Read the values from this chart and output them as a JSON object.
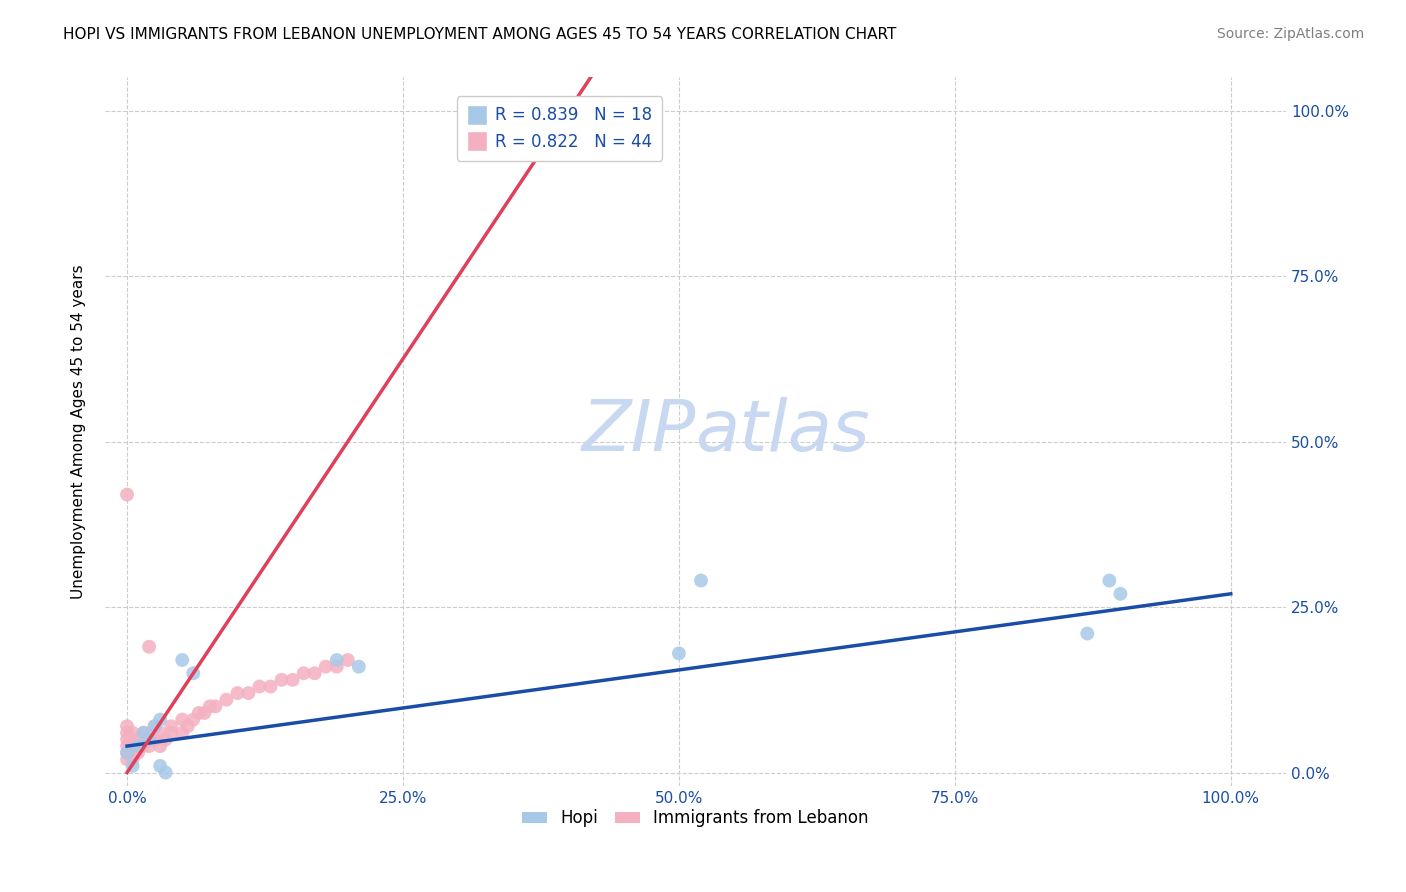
{
  "title": "HOPI VS IMMIGRANTS FROM LEBANON UNEMPLOYMENT AMONG AGES 45 TO 54 YEARS CORRELATION CHART",
  "source": "Source: ZipAtlas.com",
  "ylabel": "Unemployment Among Ages 45 to 54 years",
  "xlim": [
    -0.02,
    1.05
  ],
  "ylim": [
    -0.02,
    1.05
  ],
  "xticks": [
    0.0,
    0.25,
    0.5,
    0.75,
    1.0
  ],
  "yticks": [
    0.0,
    0.25,
    0.5,
    0.75,
    1.0
  ],
  "xticklabels": [
    "0.0%",
    "25.0%",
    "50.0%",
    "75.0%",
    "100.0%"
  ],
  "right_yticklabels": [
    "0.0%",
    "25.0%",
    "50.0%",
    "75.0%",
    "100.0%"
  ],
  "watermark_zip": "ZIP",
  "watermark_atlas": "atlas",
  "hopi_color": "#a8c8e8",
  "lebanon_color": "#f4b0c0",
  "hopi_line_color": "#1a4da6",
  "lebanon_line_color": "#e0405a",
  "hopi_R": "0.839",
  "hopi_N": "18",
  "lebanon_R": "0.822",
  "lebanon_N": "44",
  "legend_label_hopi": "Hopi",
  "legend_label_lebanon": "Immigrants from Lebanon",
  "hopi_scatter_x": [
    0.0,
    0.005,
    0.01,
    0.015,
    0.02,
    0.025,
    0.03,
    0.035,
    0.05,
    0.06,
    0.19,
    0.21,
    0.5,
    0.52,
    0.87,
    0.89,
    0.9,
    0.03
  ],
  "hopi_scatter_y": [
    0.03,
    0.01,
    0.04,
    0.06,
    0.05,
    0.07,
    0.08,
    0.0,
    0.17,
    0.15,
    0.17,
    0.16,
    0.18,
    0.29,
    0.21,
    0.29,
    0.27,
    0.01
  ],
  "lebanon_scatter_x": [
    0.0,
    0.0,
    0.0,
    0.0,
    0.0,
    0.0,
    0.0,
    0.005,
    0.005,
    0.005,
    0.01,
    0.01,
    0.015,
    0.015,
    0.02,
    0.02,
    0.02,
    0.025,
    0.025,
    0.03,
    0.03,
    0.035,
    0.04,
    0.04,
    0.05,
    0.05,
    0.055,
    0.06,
    0.065,
    0.07,
    0.075,
    0.08,
    0.09,
    0.1,
    0.11,
    0.12,
    0.13,
    0.14,
    0.15,
    0.16,
    0.17,
    0.18,
    0.19,
    0.2
  ],
  "lebanon_scatter_y": [
    0.02,
    0.03,
    0.04,
    0.05,
    0.06,
    0.07,
    0.42,
    0.02,
    0.04,
    0.06,
    0.03,
    0.05,
    0.04,
    0.06,
    0.04,
    0.05,
    0.19,
    0.05,
    0.07,
    0.04,
    0.06,
    0.05,
    0.06,
    0.07,
    0.06,
    0.08,
    0.07,
    0.08,
    0.09,
    0.09,
    0.1,
    0.1,
    0.11,
    0.12,
    0.12,
    0.13,
    0.13,
    0.14,
    0.14,
    0.15,
    0.15,
    0.16,
    0.16,
    0.17
  ],
  "hopi_trendline_x": [
    0.0,
    1.0
  ],
  "hopi_trendline_y": [
    0.04,
    0.27
  ],
  "lebanon_trendline_x": [
    0.0,
    0.42
  ],
  "lebanon_trendline_y": [
    0.0,
    1.05
  ],
  "marker_size": 100,
  "background_color": "#ffffff",
  "grid_color": "#cccccc",
  "title_fontsize": 11,
  "axis_label_fontsize": 11,
  "tick_fontsize": 11,
  "source_fontsize": 10,
  "watermark_fontsize": 52,
  "watermark_color": "#c8d8f0",
  "legend_fontsize": 12,
  "accent_color": "#1a4da6"
}
